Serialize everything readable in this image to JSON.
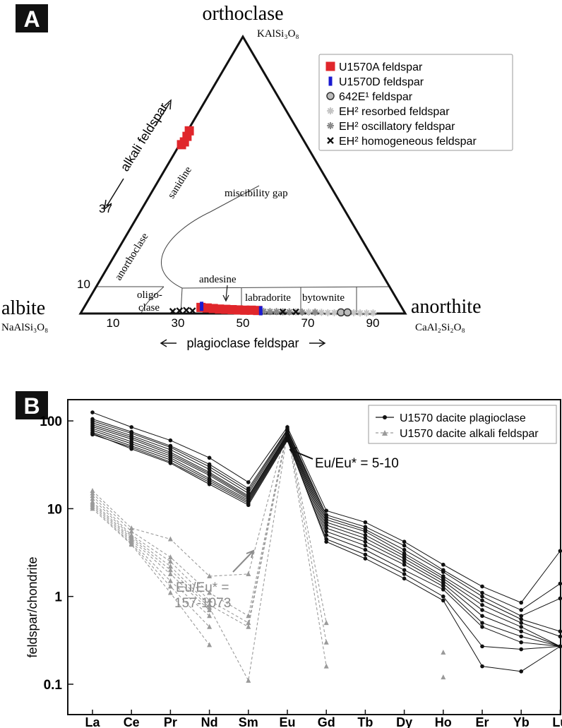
{
  "colors": {
    "red": "#e0262b",
    "blue": "#1a1ad0",
    "black": "#111111",
    "gray": "#9a9a9a",
    "lightgray": "#c4c4c4",
    "darkgray": "#8a8a8a"
  },
  "panelA": {
    "panel_label": "A",
    "apex_top": "orthoclase",
    "apex_top_formula": "KAlSi₃O₈",
    "apex_left": "albite",
    "apex_left_formula": "NaAlSi₃O₈",
    "apex_right": "anorthite",
    "apex_right_formula": "CaAl₂Si₂O₈",
    "left_axis_label": "alkali feldspar",
    "bottom_axis_label": "plagioclase feldspar",
    "left_ticks": [
      "10",
      "37"
    ],
    "bottom_ticks": [
      "10",
      "30",
      "50",
      "70",
      "90"
    ],
    "fields": {
      "sanidine": "sanidine",
      "miscibility_gap": "miscibility gap",
      "anorthoclase": "anorthoclase",
      "oligoclase_1": "oligo-",
      "oligoclase_2": "clase",
      "andesine": "andesine",
      "labradorite": "labradorite",
      "bytownite": "bytownite"
    },
    "legend": [
      {
        "label": "U1570A feldspar",
        "marker": "red-square"
      },
      {
        "label": "U1570D feldspar",
        "marker": "blue-square"
      },
      {
        "label": "642E¹ feldspar",
        "marker": "gray-circle"
      },
      {
        "label": "EH² resorbed feldspar",
        "marker": "light-asterisk"
      },
      {
        "label": "EH² oscillatory feldspar",
        "marker": "gray-asterisk"
      },
      {
        "label": "EH² homogeneous feldspar",
        "marker": "black-x"
      }
    ]
  },
  "panelB": {
    "panel_label": "B",
    "ylabel": "feldspar/chondrite",
    "y_ticks": [
      "0.1",
      "1",
      "10",
      "100"
    ],
    "annotation_plag": "Eu/Eu* = 5-10",
    "annotation_alk_1": "Eu/Eu* =",
    "annotation_alk_2": "157-1073",
    "legend": [
      {
        "label": "U1570 dacite plagioclase"
      },
      {
        "label": "U1570 dacite alkali feldspar"
      }
    ]
  },
  "chart_data": [
    {
      "type": "scatter",
      "subtype": "ternary",
      "components": [
        "albite",
        "anorthite",
        "orthoclase"
      ],
      "series": [
        {
          "name": "U1570A feldspar",
          "points_an_or": [
            [
              0.5,
              66
            ],
            [
              0.8,
              64
            ],
            [
              1.0,
              62
            ],
            [
              0.6,
              61
            ],
            [
              36,
              2.2
            ],
            [
              38,
              2.0
            ],
            [
              40,
              1.8
            ],
            [
              42,
              1.6
            ],
            [
              44,
              1.5
            ],
            [
              46,
              1.4
            ],
            [
              48,
              1.3
            ],
            [
              50,
              1.2
            ],
            [
              52,
              1.2
            ],
            [
              54,
              1.1
            ]
          ]
        },
        {
          "name": "U1570D feldspar",
          "points_an_or": [
            [
              36,
              2.6
            ],
            [
              55,
              1.0
            ]
          ]
        },
        {
          "name": "642E¹ feldspar",
          "points_an_or": [
            [
              80,
              0.4
            ],
            [
              82,
              0.4
            ]
          ]
        },
        {
          "name": "EH² resorbed feldspar",
          "points_an_or": [
            [
              66,
              0.6
            ],
            [
              70,
              0.5
            ],
            [
              72,
              0.4
            ],
            [
              74,
              0.4
            ],
            [
              76,
              0.3
            ],
            [
              78,
              0.3
            ],
            [
              84,
              0.3
            ],
            [
              86,
              0.2
            ],
            [
              88,
              0.2
            ],
            [
              90,
              0.2
            ]
          ]
        },
        {
          "name": "EH² oscillatory feldspar",
          "points_an_or": [
            [
              56,
              0.8
            ],
            [
              58,
              0.7
            ],
            [
              60,
              0.7
            ],
            [
              62,
              0.6
            ],
            [
              64,
              0.6
            ],
            [
              68,
              0.5
            ],
            [
              72,
              0.5
            ]
          ]
        },
        {
          "name": "EH² homogeneous feldspar",
          "points_an_or": [
            [
              28,
              0.8
            ],
            [
              30,
              1.0
            ],
            [
              32,
              1.2
            ],
            [
              34,
              1.0
            ],
            [
              62,
              0.6
            ],
            [
              66,
              0.6
            ]
          ]
        }
      ]
    },
    {
      "type": "line",
      "scale": "log",
      "categories": [
        "La",
        "Ce",
        "Pr",
        "Nd",
        "Sm",
        "Eu",
        "Gd",
        "Tb",
        "Dy",
        "Ho",
        "Er",
        "Yb",
        "Lu"
      ],
      "ylim": [
        0.1,
        100
      ],
      "series": [
        {
          "name": "U1570 dacite plagioclase",
          "style": "solid",
          "lines": [
            [
              125,
              85,
              60,
              38,
              20,
              85,
              9.5,
              7.0,
              4.2,
              2.3,
              1.3,
              0.85,
              3.3
            ],
            [
              105,
              75,
              52,
              32,
              17,
              80,
              8.5,
              6.2,
              3.8,
              2.0,
              1.1,
              0.7,
              1.4
            ],
            [
              100,
              72,
              50,
              30,
              16,
              78,
              8.0,
              5.8,
              3.4,
              1.9,
              1.0,
              0.6,
              0.95
            ],
            [
              95,
              68,
              47,
              28,
              15,
              75,
              7.5,
              5.5,
              3.1,
              1.7,
              0.9,
              0.55,
              0.4
            ],
            [
              90,
              65,
              44,
              26,
              14,
              72,
              7.0,
              5.0,
              2.9,
              1.6,
              0.8,
              0.5,
              0.35
            ],
            [
              86,
              62,
              42,
              25,
              13.5,
              70,
              6.5,
              4.6,
              2.7,
              1.5,
              0.7,
              0.45,
              0.27
            ],
            [
              82,
              58,
              40,
              24,
              13,
              68,
              6.0,
              4.2,
              2.5,
              1.4,
              0.6,
              0.4,
              0.27
            ],
            [
              78,
              55,
              38,
              22,
              12.5,
              66,
              5.5,
              3.8,
              2.3,
              1.3,
              0.5,
              0.35,
              0.27
            ],
            [
              74,
              52,
              36,
              21,
              12,
              64,
              5.0,
              3.4,
              2.0,
              1.2,
              0.45,
              0.3,
              0.27
            ],
            [
              70,
              50,
              34,
              20,
              11.5,
              62,
              4.5,
              3.0,
              1.8,
              1.0,
              0.27,
              0.25,
              0.27
            ],
            [
              72,
              48,
              33,
              19,
              11,
              60,
              4.2,
              2.7,
              1.6,
              0.9,
              0.16,
              0.14,
              0.27
            ]
          ]
        },
        {
          "name": "U1570 dacite alkali feldspar",
          "style": "dashed",
          "lines": [
            [
              16,
              6.0,
              4.5,
              1.7,
              1.8,
              85,
              0.5
            ],
            [
              15,
              5.5,
              2.8,
              1.1,
              0.6,
              80,
              0.3
            ],
            [
              14,
              5.0,
              2.5,
              0.9,
              0.5,
              78,
              0.16
            ],
            [
              13,
              4.8,
              2.2,
              0.8,
              0.45,
              75,
              null
            ],
            [
              12,
              4.6,
              2.0,
              0.75,
              0.11,
              72,
              null
            ],
            [
              11.5,
              4.4,
              1.8,
              0.7,
              null,
              null,
              null
            ],
            [
              11,
              4.2,
              1.5,
              0.6,
              null,
              null,
              null
            ],
            [
              10.5,
              4.0,
              1.3,
              0.45,
              null,
              null,
              null
            ],
            [
              10,
              3.9,
              1.1,
              0.28,
              null,
              null,
              null
            ]
          ],
          "extra_points": [
            [
              9,
              0.23
            ],
            [
              9,
              0.12
            ]
          ]
        }
      ]
    }
  ]
}
